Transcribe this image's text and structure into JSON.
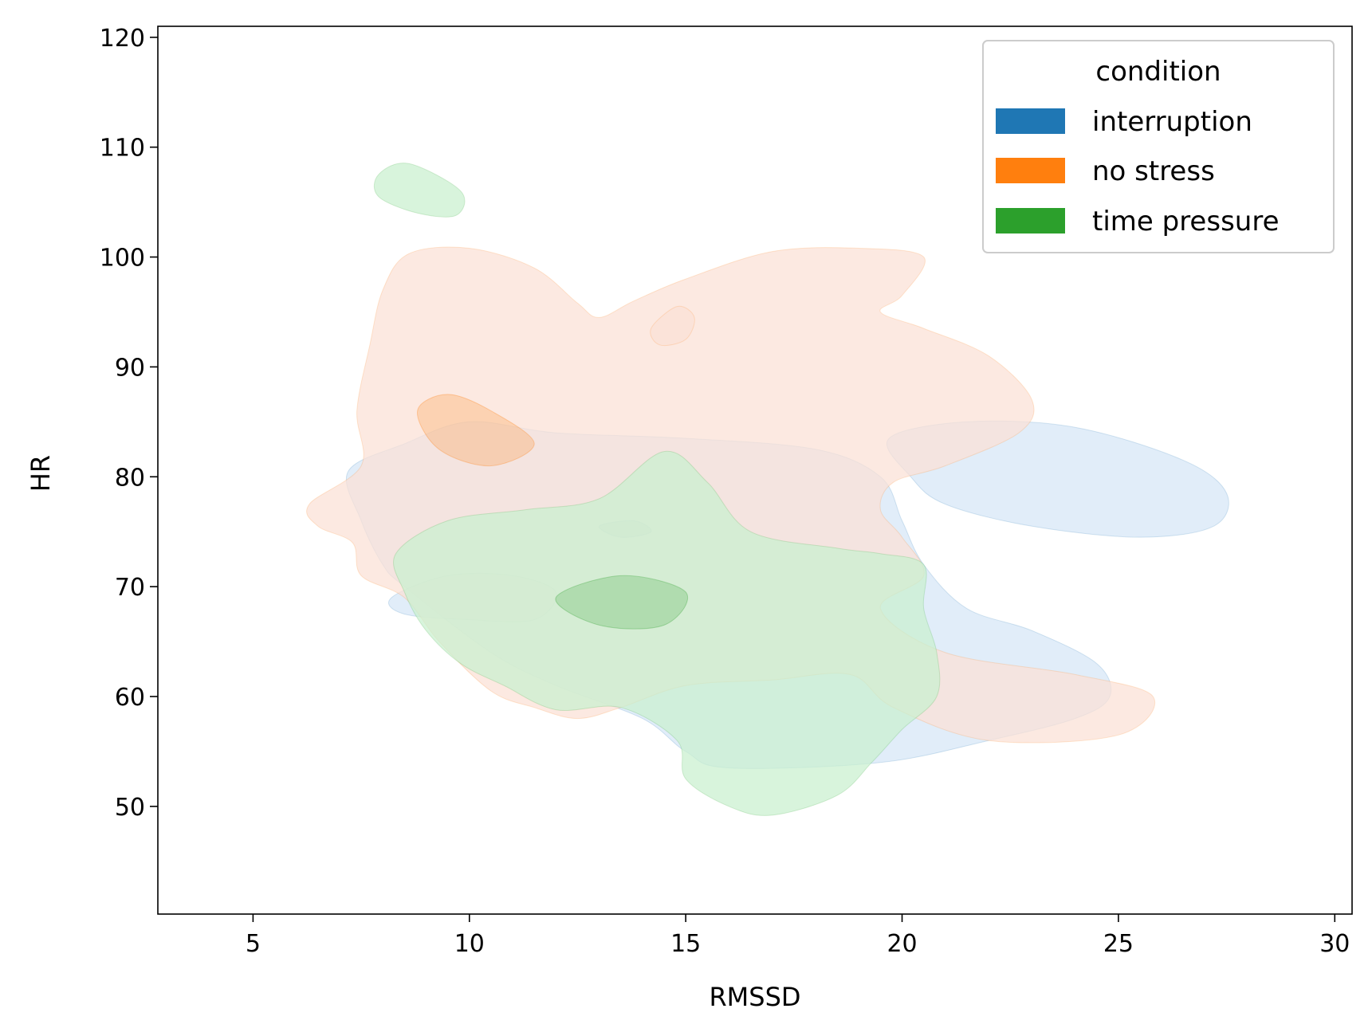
{
  "chart_data": {
    "type": "kde-contour",
    "xlabel": "RMSSD",
    "ylabel": "HR",
    "xlim": [
      2.8,
      30.4
    ],
    "ylim": [
      40.2,
      121
    ],
    "xticks": [
      5,
      10,
      15,
      20,
      25,
      30
    ],
    "yticks": [
      50,
      60,
      70,
      80,
      90,
      100,
      110,
      120
    ],
    "grid": false,
    "legend": {
      "title": "condition",
      "placement": "top-right",
      "entries": [
        "interruption",
        "no stress",
        "time pressure"
      ]
    },
    "series": [
      {
        "name": "interruption",
        "color": "#1f77b4",
        "fill": "#d6e6f7",
        "regions": [
          [
            [
              7.2,
              80.5
            ],
            [
              8.5,
              83
            ],
            [
              10,
              85
            ],
            [
              12,
              84
            ],
            [
              15,
              83.5
            ],
            [
              18,
              82.5
            ],
            [
              19.5,
              80
            ],
            [
              20,
              76
            ],
            [
              20.5,
              72
            ],
            [
              21.5,
              68
            ],
            [
              23,
              66
            ],
            [
              24.5,
              63
            ],
            [
              24.8,
              60
            ],
            [
              24,
              58
            ],
            [
              22,
              56
            ],
            [
              19.5,
              54
            ],
            [
              16,
              53.5
            ],
            [
              15,
              55
            ],
            [
              14,
              58
            ],
            [
              12,
              61
            ],
            [
              10.5,
              64
            ],
            [
              8.5,
              70
            ],
            [
              8,
              72
            ],
            [
              7.5,
              76
            ],
            [
              7.2,
              80.5
            ]
          ],
          [
            [
              19.7,
              83.5
            ],
            [
              21.5,
              85
            ],
            [
              24,
              84.5
            ],
            [
              26.5,
              81.5
            ],
            [
              27.5,
              78.5
            ],
            [
              27.2,
              75.5
            ],
            [
              25.5,
              74.5
            ],
            [
              23,
              75.5
            ],
            [
              21,
              77.5
            ],
            [
              20.2,
              80
            ],
            [
              19.7,
              83.5
            ]
          ],
          [
            [
              8.2,
              69
            ],
            [
              9.5,
              71
            ],
            [
              11,
              71
            ],
            [
              12,
              69.5
            ],
            [
              11.5,
              67
            ],
            [
              10,
              67
            ],
            [
              8.5,
              67.5
            ],
            [
              8.2,
              69
            ]
          ]
        ],
        "core": [
          [
            13,
            75.5
          ],
          [
            13.8,
            76
          ],
          [
            14.2,
            75
          ],
          [
            13.5,
            74.5
          ],
          [
            13,
            75.5
          ]
        ]
      },
      {
        "name": "no stress",
        "color": "#ff7f0e",
        "fill": "#fbe0d6",
        "regions": [
          [
            [
              6.3,
              77.5
            ],
            [
              7.5,
              81
            ],
            [
              7.4,
              86
            ],
            [
              7.7,
              92
            ],
            [
              8,
              97
            ],
            [
              8.6,
              100.3
            ],
            [
              10,
              100.8
            ],
            [
              11.5,
              99
            ],
            [
              12.5,
              95.8
            ],
            [
              13,
              94.5
            ],
            [
              13.8,
              96
            ],
            [
              15,
              98
            ],
            [
              17,
              100.5
            ],
            [
              19,
              100.8
            ],
            [
              20.5,
              100
            ],
            [
              20,
              96.5
            ],
            [
              19.5,
              95
            ],
            [
              20.5,
              93.5
            ],
            [
              22,
              91
            ],
            [
              23,
              87
            ],
            [
              22.7,
              84
            ],
            [
              21,
              81
            ],
            [
              19.8,
              79.5
            ],
            [
              19.5,
              77
            ],
            [
              20,
              74.5
            ],
            [
              20.5,
              71
            ],
            [
              19.5,
              68
            ],
            [
              21,
              64
            ],
            [
              24,
              62
            ],
            [
              25.8,
              60
            ],
            [
              25,
              56.5
            ],
            [
              22,
              56
            ],
            [
              19.8,
              59
            ],
            [
              18.8,
              62
            ],
            [
              17,
              61.5
            ],
            [
              15,
              61
            ],
            [
              13.5,
              59
            ],
            [
              12.5,
              58
            ],
            [
              11.5,
              59
            ],
            [
              10.5,
              60.5
            ],
            [
              9.3,
              65
            ],
            [
              8.5,
              69
            ],
            [
              7.5,
              71
            ],
            [
              7.3,
              74
            ],
            [
              6.5,
              75.5
            ],
            [
              6.3,
              77.5
            ]
          ],
          [
            [
              14.2,
              93.5
            ],
            [
              14.8,
              95.5
            ],
            [
              15.2,
              94.5
            ],
            [
              15,
              92.5
            ],
            [
              14.4,
              92
            ],
            [
              14.2,
              93.5
            ]
          ]
        ],
        "core": [
          [
            8.8,
            86
          ],
          [
            9.5,
            87.5
          ],
          [
            10.5,
            86
          ],
          [
            11.5,
            83
          ],
          [
            10.5,
            81
          ],
          [
            9.3,
            82.5
          ],
          [
            8.8,
            86
          ]
        ]
      },
      {
        "name": "time pressure",
        "color": "#2ca02c",
        "fill": "#c9f0cf",
        "regions": [
          [
            [
              8.3,
              73
            ],
            [
              9.5,
              76
            ],
            [
              11.3,
              77
            ],
            [
              13,
              78
            ],
            [
              14.5,
              82.3
            ],
            [
              15.5,
              79.5
            ],
            [
              16.5,
              75
            ],
            [
              18.5,
              73.5
            ],
            [
              19.5,
              73
            ],
            [
              20.5,
              72
            ],
            [
              20.5,
              68
            ],
            [
              20.8,
              64
            ],
            [
              20.8,
              60
            ],
            [
              20,
              57
            ],
            [
              19.3,
              54
            ],
            [
              18.5,
              51
            ],
            [
              17,
              49.2
            ],
            [
              16,
              50
            ],
            [
              15,
              52.5
            ],
            [
              14.8,
              56
            ],
            [
              13.5,
              59
            ],
            [
              12,
              58.8
            ],
            [
              10.8,
              61
            ],
            [
              9.8,
              63
            ],
            [
              9,
              66
            ],
            [
              8.5,
              69.5
            ],
            [
              8.3,
              73
            ]
          ],
          [
            [
              7.9,
              107.5
            ],
            [
              8.6,
              108.5
            ],
            [
              9.8,
              106
            ],
            [
              9.7,
              103.8
            ],
            [
              8.8,
              104
            ],
            [
              7.9,
              105.5
            ],
            [
              7.9,
              107.5
            ]
          ]
        ],
        "core": [
          [
            12,
            69
          ],
          [
            13.5,
            71
          ],
          [
            15,
            69.5
          ],
          [
            14.5,
            66.5
          ],
          [
            13,
            66.5
          ],
          [
            12,
            69
          ]
        ]
      }
    ]
  }
}
